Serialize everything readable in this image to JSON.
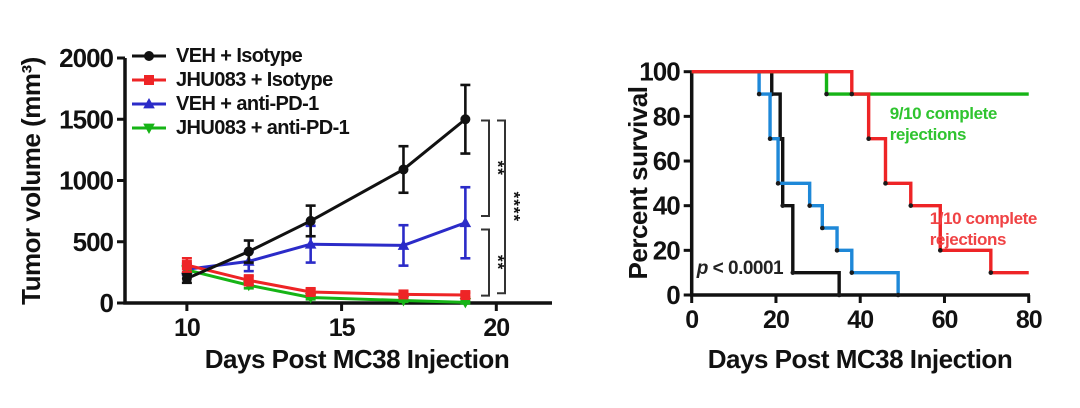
{
  "figure": {
    "background": "#ffffff"
  },
  "colors": {
    "black": "#111111",
    "red": "#ee2426",
    "dark_blue": "#2b2bc8",
    "green": "#16b416",
    "light_blue": "#1e88d8",
    "annot_green": "#2fc42f",
    "annot_red": "#f04345"
  },
  "chart_data": [
    {
      "id": "tumor-growth",
      "type": "line",
      "title": "",
      "xlabel": "Days Post MC38 Injection",
      "ylabel": "Tumor volume (mm³)",
      "xticks": [
        10,
        15,
        20
      ],
      "yticks": [
        0,
        500,
        1000,
        1500,
        2000
      ],
      "xlim": [
        8,
        21.8
      ],
      "ylim": [
        0,
        2000
      ],
      "grid": false,
      "legend_position": "top-left",
      "x": [
        10,
        12,
        14,
        17,
        19
      ],
      "series": [
        {
          "key": "veh-isotype",
          "name": "VEH + Isotype",
          "color": "#111111",
          "marker": "circle",
          "values": [
            200,
            420,
            670,
            1090,
            1500
          ],
          "errors": [
            35,
            90,
            125,
            190,
            280
          ]
        },
        {
          "key": "jhu083-isotype",
          "name": "JHU083 + Isotype",
          "color": "#ee2426",
          "marker": "square",
          "values": [
            310,
            185,
            90,
            70,
            65
          ],
          "errors": [
            55,
            40,
            25,
            20,
            20
          ]
        },
        {
          "key": "veh-antipd1",
          "name": "VEH + anti-PD-1",
          "color": "#2b2bc8",
          "marker": "triangle-up",
          "values": [
            275,
            340,
            480,
            470,
            655
          ],
          "errors": [
            45,
            80,
            150,
            165,
            290
          ]
        },
        {
          "key": "jhu083-antipd1",
          "name": "JHU083 + anti-PD-1",
          "color": "#16b416",
          "marker": "triangle-down",
          "values": [
            270,
            145,
            45,
            20,
            5
          ],
          "errors": [
            30,
            25,
            15,
            10,
            8
          ]
        }
      ],
      "significance": [
        {
          "label": "**",
          "v_from": 710,
          "v_to": 1490,
          "tier": 0
        },
        {
          "label": "**",
          "v_from": 60,
          "v_to": 600,
          "tier": 0
        },
        {
          "label": "****",
          "v_from": 80,
          "v_to": 1490,
          "tier": 1
        }
      ]
    },
    {
      "id": "survival",
      "type": "step",
      "title": "",
      "xlabel": "Days Post MC38 Injection",
      "ylabel": "Percent survival",
      "xticks": [
        0,
        20,
        40,
        60,
        80
      ],
      "yticks": [
        0,
        20,
        40,
        60,
        80,
        100
      ],
      "xlim": [
        0,
        80.3
      ],
      "ylim": [
        0,
        100
      ],
      "grid": false,
      "series": [
        {
          "key": "veh-isotype",
          "name": "VEH + Isotype",
          "color": "#111111",
          "points": [
            [
              0,
              100
            ],
            [
              19,
              100
            ],
            [
              19,
              90
            ],
            [
              21,
              90
            ],
            [
              21,
              70
            ],
            [
              21.6,
              70
            ],
            [
              21.6,
              40
            ],
            [
              24,
              40
            ],
            [
              24,
              10
            ],
            [
              35,
              10
            ],
            [
              35,
              0
            ]
          ]
        },
        {
          "key": "veh-antipd1",
          "name": "VEH + anti-PD-1",
          "color": "#1e88d8",
          "points": [
            [
              0,
              100
            ],
            [
              16,
              100
            ],
            [
              16,
              90
            ],
            [
              18.6,
              90
            ],
            [
              18.6,
              70
            ],
            [
              20.5,
              70
            ],
            [
              20.5,
              50
            ],
            [
              28,
              50
            ],
            [
              28,
              40
            ],
            [
              31,
              40
            ],
            [
              31,
              30
            ],
            [
              34.5,
              30
            ],
            [
              34.5,
              20
            ],
            [
              38,
              20
            ],
            [
              38,
              10
            ],
            [
              49,
              10
            ],
            [
              49,
              0
            ]
          ]
        },
        {
          "key": "jhu083-antipd1",
          "name": "JHU083 + anti-PD-1",
          "color": "#16b416",
          "points": [
            [
              0,
              100
            ],
            [
              32,
              100
            ],
            [
              32,
              90
            ],
            [
              80,
              90
            ]
          ]
        },
        {
          "key": "jhu083-isotype",
          "name": "JHU083 + Isotype",
          "color": "#ee2426",
          "points": [
            [
              0,
              100
            ],
            [
              38,
              100
            ],
            [
              38,
              90
            ],
            [
              42,
              90
            ],
            [
              42,
              70
            ],
            [
              46,
              70
            ],
            [
              46,
              50
            ],
            [
              52,
              50
            ],
            [
              52,
              40
            ],
            [
              59,
              40
            ],
            [
              59,
              20
            ],
            [
              71,
              20
            ],
            [
              71,
              10
            ],
            [
              80,
              10
            ]
          ]
        }
      ],
      "annotations": {
        "green_note": {
          "lines": [
            "9/10 complete",
            "rejections"
          ],
          "color": "#2fc42f",
          "x_day": 47,
          "y_pct": 86
        },
        "red_note": {
          "lines": [
            "1/10 complete",
            "rejections"
          ],
          "color": "#f04345",
          "x_day": 56.5,
          "y_pct": 39
        },
        "p_value": {
          "italic": "p",
          "rest": " < 0.0001",
          "color": "#222222",
          "x_day": 1.2,
          "y_pct": 16.5
        }
      }
    }
  ]
}
